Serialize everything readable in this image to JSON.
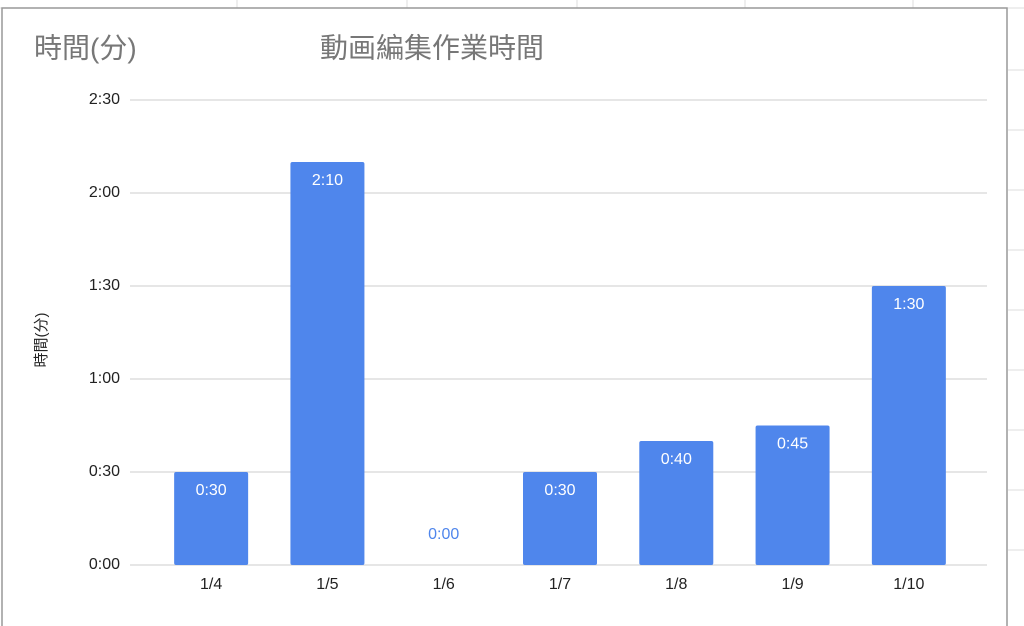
{
  "chart_data": {
    "type": "bar",
    "title": "動画編集作業時間",
    "subtitle": "時間(分)",
    "y_label": "時間(分)",
    "categories": [
      "1/4",
      "1/5",
      "1/6",
      "1/7",
      "1/8",
      "1/9",
      "1/10"
    ],
    "values": [
      30,
      130,
      0,
      30,
      40,
      45,
      90
    ],
    "value_labels": [
      "0:30",
      "2:10",
      "0:00",
      "0:30",
      "0:40",
      "0:45",
      "1:30"
    ],
    "color": "#4f86ec",
    "ylim": [
      0,
      150
    ],
    "yticks": [
      {
        "value": 0,
        "label": "0:00"
      },
      {
        "value": 30,
        "label": "0:30"
      },
      {
        "value": 60,
        "label": "1:00"
      },
      {
        "value": 90,
        "label": "1:30"
      },
      {
        "value": 120,
        "label": "2:00"
      },
      {
        "value": 150,
        "label": "2:30"
      }
    ],
    "grid": true
  }
}
